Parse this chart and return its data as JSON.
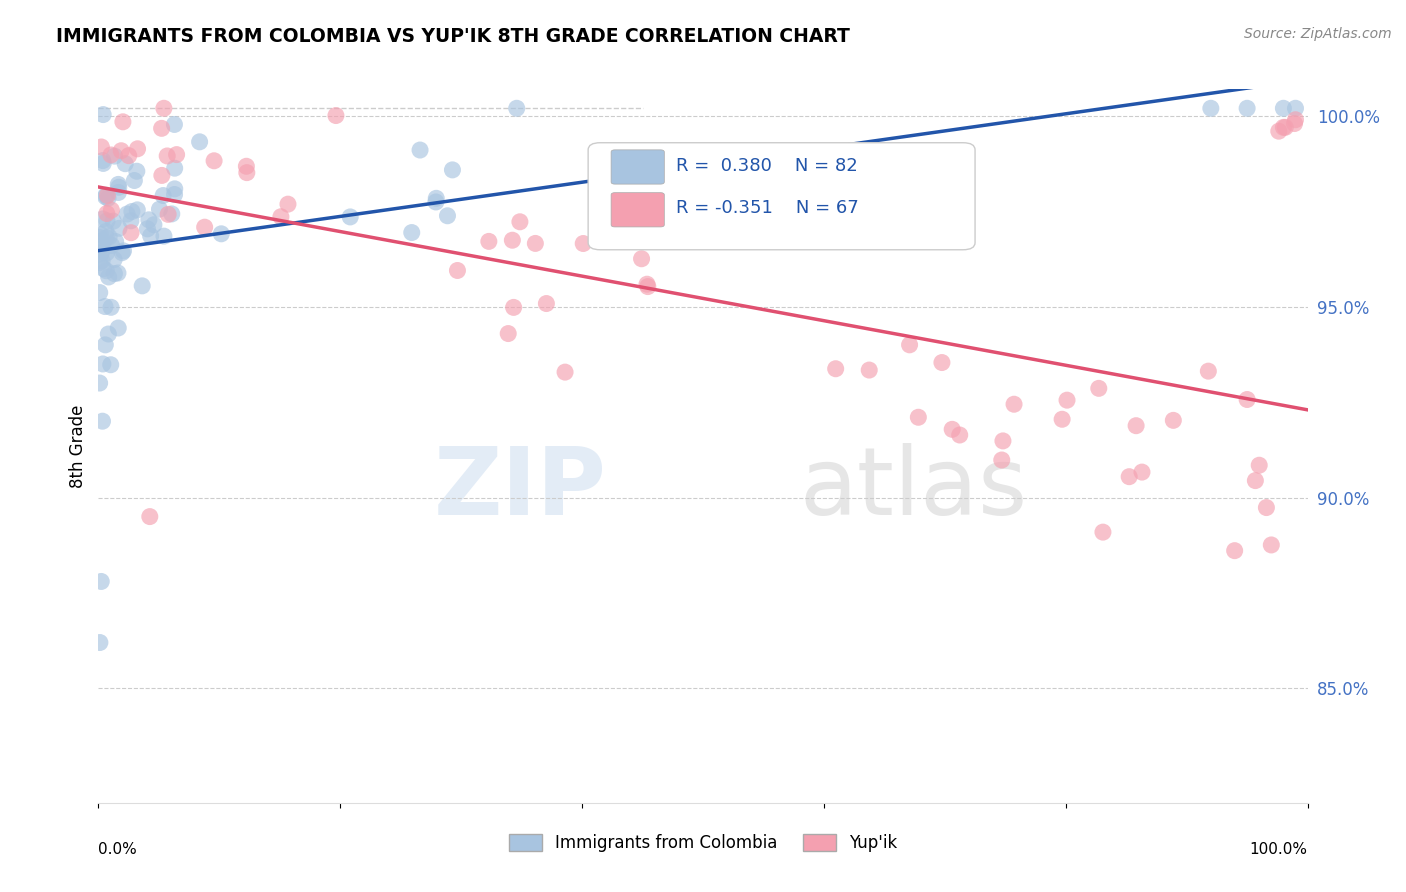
{
  "title": "IMMIGRANTS FROM COLOMBIA VS YUP'IK 8TH GRADE CORRELATION CHART",
  "source": "Source: ZipAtlas.com",
  "ylabel": "8th Grade",
  "xlim": [
    0.0,
    1.0
  ],
  "ylim": [
    0.82,
    1.007
  ],
  "yticks": [
    0.85,
    0.9,
    0.95,
    1.0
  ],
  "ytick_labels": [
    "85.0%",
    "90.0%",
    "95.0%",
    "100.0%"
  ],
  "colombia_R": 0.38,
  "colombia_N": 82,
  "yupik_R": -0.351,
  "yupik_N": 67,
  "colombia_color": "#a8c4e0",
  "yupik_color": "#f4a0b0",
  "colombia_line_color": "#2255aa",
  "yupik_line_color": "#e05070",
  "legend_label_colombia": "Immigrants from Colombia",
  "legend_label_yupik": "Yup'ik",
  "watermark_zip": "ZIP",
  "watermark_atlas": "atlas"
}
